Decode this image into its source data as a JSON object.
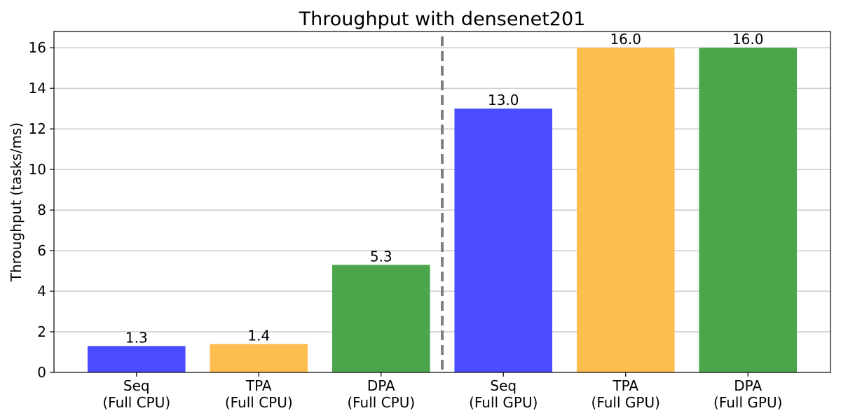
{
  "chart_data": {
    "type": "bar",
    "title": "Throughput with densenet201",
    "xlabel": "",
    "ylabel": "Throughput (tasks/ms)",
    "categories": [
      [
        "Seq",
        "(Full CPU)"
      ],
      [
        "TPA",
        "(Full CPU)"
      ],
      [
        "DPA",
        "(Full CPU)"
      ],
      [
        "Seq",
        "(Full GPU)"
      ],
      [
        "TPA",
        "(Full GPU)"
      ],
      [
        "DPA",
        "(Full GPU)"
      ]
    ],
    "values": [
      1.3,
      1.4,
      5.3,
      13.0,
      16.0,
      16.0
    ],
    "value_labels": [
      "1.3",
      "1.4",
      "5.3",
      "13.0",
      "16.0",
      "16.0"
    ],
    "bar_colors": [
      "#4b4bff",
      "#fdbe4f",
      "#4ba64b",
      "#4b4bff",
      "#fdbe4f",
      "#4ba64b"
    ],
    "ylim": [
      0,
      16.8
    ],
    "yticks": [
      0,
      2,
      4,
      6,
      8,
      10,
      12,
      14,
      16
    ],
    "grid": "horizontal",
    "divider_after_category": 2,
    "divider_color": "#808080"
  }
}
